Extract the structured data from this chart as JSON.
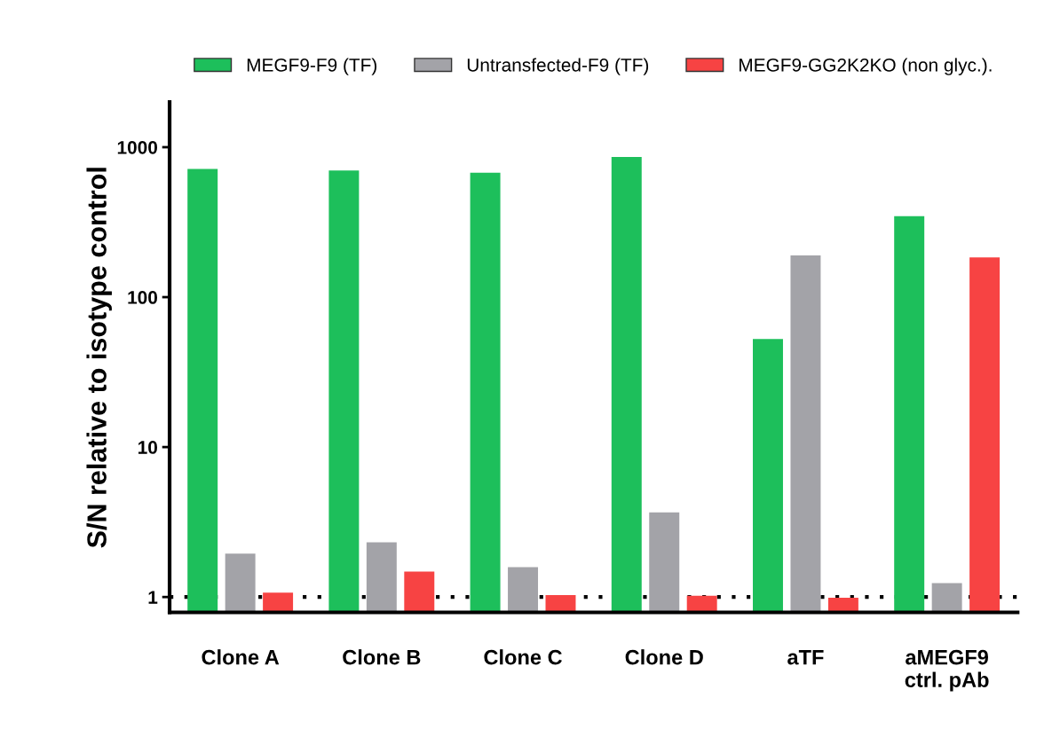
{
  "chart_data": {
    "type": "bar",
    "ylabel": "S/N relative to isotype control",
    "categories": [
      "Clone A",
      "Clone B",
      "Clone C",
      "Clone D",
      "aTF",
      "aMEGF9\nctrl. pAb"
    ],
    "series": [
      {
        "name": "MEGF9-F9 (TF)",
        "color": "#1dbf5b",
        "values": [
          716,
          700,
          676,
          861,
          52.5,
          347
        ]
      },
      {
        "name": "Untransfected-F9 (TF)",
        "color": "#a3a3a8",
        "values": [
          1.95,
          2.32,
          1.58,
          3.67,
          190,
          1.24
        ]
      },
      {
        "name": "MEGF9-GG2K2KO (non glyc.).",
        "color": "#f74343",
        "values": [
          1.07,
          1.48,
          1.03,
          1.02,
          0.99,
          184
        ]
      }
    ],
    "log": true,
    "ylim": [
      0.79,
      2000
    ],
    "yticks": [
      1,
      10,
      100,
      1000
    ],
    "grid": false,
    "legend": "top",
    "ref_lines": [
      {
        "axis": "y",
        "value": 1,
        "line_style": "dotted",
        "color": "#000000"
      }
    ]
  }
}
